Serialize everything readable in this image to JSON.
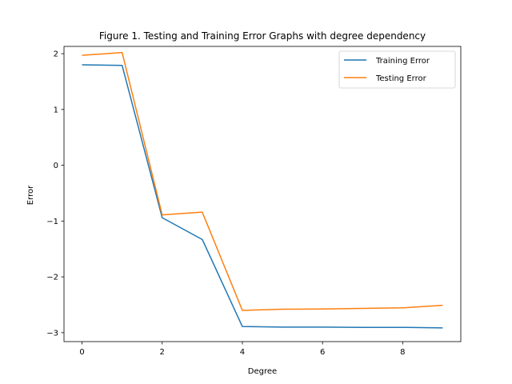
{
  "chart_data": {
    "type": "line",
    "title": "Figure 1. Testing and Training Error Graphs with degree dependency",
    "xlabel": "Degree",
    "ylabel": "Error",
    "xlim": [
      -0.45,
      9.45
    ],
    "ylim": [
      -3.16,
      2.13
    ],
    "xticks": [
      0,
      2,
      4,
      6,
      8
    ],
    "xtick_labels": [
      "0",
      "2",
      "4",
      "6",
      "8"
    ],
    "yticks": [
      -3,
      -2,
      -1,
      0,
      1,
      2
    ],
    "ytick_labels": [
      "−3",
      "−2",
      "−1",
      "0",
      "1",
      "2"
    ],
    "grid": false,
    "legend_position": "top-right",
    "x": [
      0,
      1,
      2,
      3,
      4,
      5,
      6,
      7,
      8,
      9
    ],
    "series": [
      {
        "name": "Training Error",
        "color": "#1f77b4",
        "values": [
          1.8,
          1.79,
          -0.94,
          -1.33,
          -2.89,
          -2.9,
          -2.9,
          -2.905,
          -2.905,
          -2.915
        ]
      },
      {
        "name": "Testing Error",
        "color": "#ff7f0e",
        "values": [
          1.97,
          2.02,
          -0.89,
          -0.84,
          -2.6,
          -2.58,
          -2.575,
          -2.565,
          -2.555,
          -2.51
        ]
      }
    ]
  }
}
